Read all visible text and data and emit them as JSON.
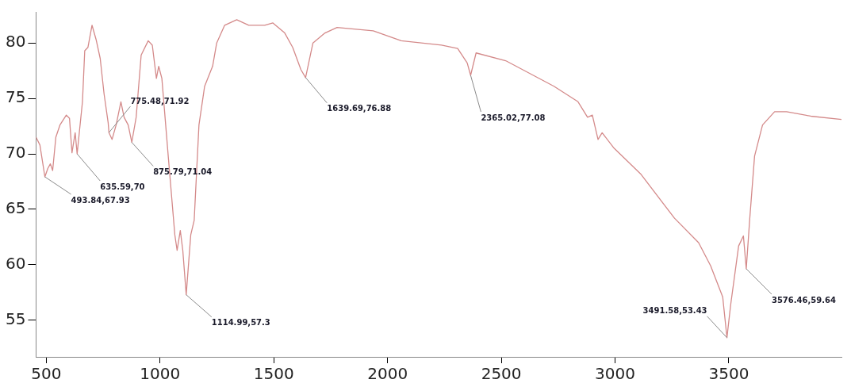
{
  "chart_data": {
    "type": "line",
    "xlim": [
      455,
      3995
    ],
    "ylim": [
      51.7,
      82.8
    ],
    "xticks": [
      500,
      1000,
      1500,
      2000,
      2500,
      3000,
      3500
    ],
    "yticks": [
      55,
      60,
      65,
      70,
      75,
      80
    ],
    "grid": false,
    "legend": false,
    "marker": "none",
    "line_style": "solid",
    "series": [
      {
        "color": "#d48a8a",
        "x": [
          455,
          472,
          493.84,
          507,
          518,
          528,
          542,
          560,
          588,
          602,
          613,
          627,
          635.59,
          659,
          669,
          683,
          701,
          719,
          737,
          754,
          772,
          775.48,
          789,
          807,
          828,
          842,
          860,
          875.79,
          895,
          917,
          948,
          966,
          984,
          994,
          1008,
          1036,
          1065,
          1075,
          1089,
          1100,
          1114.99,
          1135,
          1150,
          1171,
          1196,
          1231,
          1249,
          1284,
          1337,
          1390,
          1460,
          1496,
          1548,
          1583,
          1619,
          1639.69,
          1672,
          1725,
          1778,
          1937,
          2060,
          2237,
          2308,
          2350,
          2365.02,
          2389,
          2519,
          2731,
          2837,
          2879,
          2900,
          2925,
          2943,
          2996,
          3112,
          3261,
          3367,
          3420,
          3473,
          3491.58,
          3508,
          3543,
          3564,
          3576.46,
          3592,
          3613,
          3648,
          3701,
          3754,
          3860,
          3995
        ],
        "values": [
          71.5,
          70.8,
          67.93,
          68.7,
          69.1,
          68.5,
          71.5,
          72.6,
          73.5,
          73.2,
          70.1,
          71.9,
          70,
          74.7,
          79.3,
          79.6,
          81.6,
          80.3,
          78.6,
          75.4,
          72.8,
          71.92,
          71.3,
          72.6,
          74.7,
          73.3,
          72.6,
          71.04,
          73.3,
          78.9,
          80.2,
          79.8,
          76.8,
          77.9,
          76.8,
          69.8,
          62.7,
          61.3,
          63.1,
          61.3,
          57.3,
          62.7,
          64,
          72.6,
          76.1,
          77.9,
          80,
          81.6,
          82.1,
          81.6,
          81.6,
          81.8,
          80.9,
          79.6,
          77.6,
          76.88,
          80,
          80.9,
          81.4,
          81.1,
          80.2,
          79.8,
          79.5,
          78.2,
          77.08,
          79.1,
          78.4,
          76.1,
          74.7,
          73.3,
          73.5,
          71.3,
          71.9,
          70.5,
          68.2,
          64.2,
          62,
          59.9,
          57.1,
          53.43,
          56.4,
          61.7,
          62.6,
          59.64,
          64.2,
          69.8,
          72.6,
          73.8,
          73.8,
          73.4,
          73.1
        ]
      }
    ],
    "annotations": [
      {
        "text": "493.84,67.93",
        "x": 493.84,
        "y": 67.93
      },
      {
        "text": "635.59,70",
        "x": 635.59,
        "y": 70
      },
      {
        "text": "775.48,71.92",
        "x": 775.48,
        "y": 71.92
      },
      {
        "text": "875.79,71.04",
        "x": 875.79,
        "y": 71.04
      },
      {
        "text": "1114.99,57.3",
        "x": 1114.99,
        "y": 57.3
      },
      {
        "text": "1639.69,76.88",
        "x": 1639.69,
        "y": 76.88
      },
      {
        "text": "2365.02,77.08",
        "x": 2365.02,
        "y": 77.08
      },
      {
        "text": "3491.58,53.43",
        "x": 3491.58,
        "y": 53.43
      },
      {
        "text": "3576.46,59.64",
        "x": 3576.46,
        "y": 59.64
      }
    ]
  }
}
